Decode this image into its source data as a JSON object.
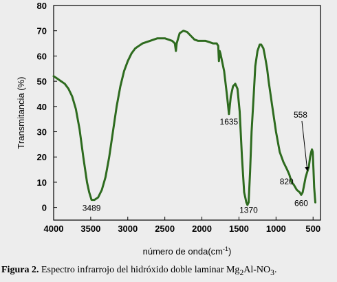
{
  "chart_data": {
    "type": "line",
    "xlabel": "número de onda(cm",
    "xlabel_sup": "-1",
    "xlabel_close": ")",
    "ylabel": "Transmitancia (%)",
    "xlim": [
      4000,
      400
    ],
    "ylim": [
      -5,
      80
    ],
    "x_ticks": [
      4000,
      3500,
      3000,
      2500,
      2000,
      1500,
      1000,
      500
    ],
    "y_ticks": [
      0,
      10,
      20,
      30,
      40,
      50,
      60,
      70,
      80
    ],
    "x_reversed": true,
    "line_color": "#2e6b1f",
    "series": [
      {
        "points": [
          [
            4000,
            52
          ],
          [
            3950,
            51
          ],
          [
            3900,
            50
          ],
          [
            3850,
            49
          ],
          [
            3800,
            47
          ],
          [
            3750,
            44
          ],
          [
            3700,
            39
          ],
          [
            3650,
            31
          ],
          [
            3600,
            20
          ],
          [
            3550,
            10
          ],
          [
            3520,
            6
          ],
          [
            3489,
            3
          ],
          [
            3450,
            3
          ],
          [
            3400,
            4
          ],
          [
            3350,
            7
          ],
          [
            3300,
            12
          ],
          [
            3250,
            20
          ],
          [
            3200,
            30
          ],
          [
            3150,
            40
          ],
          [
            3100,
            48
          ],
          [
            3050,
            54
          ],
          [
            3000,
            58
          ],
          [
            2950,
            61
          ],
          [
            2900,
            63
          ],
          [
            2850,
            64
          ],
          [
            2800,
            65
          ],
          [
            2700,
            66
          ],
          [
            2600,
            67
          ],
          [
            2500,
            67
          ],
          [
            2400,
            66
          ],
          [
            2365,
            65
          ],
          [
            2350,
            62
          ],
          [
            2340,
            65
          ],
          [
            2300,
            69
          ],
          [
            2250,
            70
          ],
          [
            2200,
            69.5
          ],
          [
            2150,
            68
          ],
          [
            2100,
            66.5
          ],
          [
            2050,
            66
          ],
          [
            2000,
            66
          ],
          [
            1950,
            66
          ],
          [
            1900,
            65.5
          ],
          [
            1850,
            65
          ],
          [
            1800,
            65
          ],
          [
            1780,
            64
          ],
          [
            1770,
            58
          ],
          [
            1760,
            62
          ],
          [
            1750,
            61
          ],
          [
            1700,
            54
          ],
          [
            1660,
            44
          ],
          [
            1635,
            37
          ],
          [
            1610,
            44
          ],
          [
            1580,
            48
          ],
          [
            1550,
            49
          ],
          [
            1520,
            47
          ],
          [
            1490,
            38
          ],
          [
            1460,
            20
          ],
          [
            1430,
            6
          ],
          [
            1400,
            2
          ],
          [
            1385,
            1
          ],
          [
            1370,
            2
          ],
          [
            1350,
            14
          ],
          [
            1330,
            30
          ],
          [
            1300,
            45
          ],
          [
            1280,
            56
          ],
          [
            1250,
            62
          ],
          [
            1220,
            64.5
          ],
          [
            1200,
            64.5
          ],
          [
            1170,
            63
          ],
          [
            1150,
            60
          ],
          [
            1120,
            55
          ],
          [
            1100,
            50
          ],
          [
            1050,
            40
          ],
          [
            1000,
            30
          ],
          [
            950,
            22
          ],
          [
            900,
            18
          ],
          [
            850,
            15
          ],
          [
            820,
            13
          ],
          [
            810,
            12
          ],
          [
            790,
            10
          ],
          [
            760,
            9
          ],
          [
            720,
            7
          ],
          [
            680,
            6
          ],
          [
            660,
            5
          ],
          [
            640,
            6
          ],
          [
            620,
            9
          ],
          [
            600,
            12
          ],
          [
            580,
            14
          ],
          [
            558,
            16
          ],
          [
            540,
            20
          ],
          [
            525,
            22
          ],
          [
            515,
            23
          ],
          [
            505,
            22
          ],
          [
            495,
            15
          ],
          [
            485,
            8
          ],
          [
            475,
            4
          ],
          [
            470,
            2
          ]
        ]
      }
    ],
    "annotations": [
      {
        "text": "3489",
        "x": 3489,
        "y": 3
      },
      {
        "text": "1635",
        "x": 1635,
        "y": 37
      },
      {
        "text": "1370",
        "x": 1370,
        "y": 2
      },
      {
        "text": "820",
        "x": 820,
        "y": 13
      },
      {
        "text": "660",
        "x": 660,
        "y": 5
      },
      {
        "text": "558",
        "x": 558,
        "y": 16
      }
    ]
  },
  "caption": {
    "label": "Figura 2.",
    "text_before_sub": " Espectro infrarrojo del hidróxido doble laminar Mg",
    "sub": "2",
    "text_after_sub": "Al-NO",
    "sub2": "3",
    "end": "."
  }
}
